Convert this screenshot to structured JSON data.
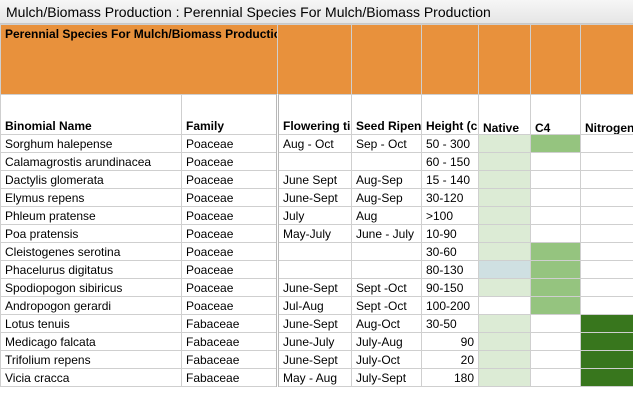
{
  "window": {
    "title": "Mulch/Biomass Production : Perennial Species For Mulch/Biomass Production"
  },
  "sheet": {
    "title": "Perennial Species For Mulch/Biomass Production",
    "headers": {
      "binomial": "Binomial Name",
      "family": "Family",
      "flowering": "Flowering time",
      "seed": "Seed Ripen",
      "height": "Height (cm)",
      "native": "Native",
      "c4": "C4",
      "nitrogen": "Nitrogen Fixing"
    },
    "rows": [
      {
        "name": "Sorghum halepense",
        "family": "Poaceae",
        "flowering": "Aug - Oct",
        "seed": "Sep - Oct",
        "height": "50 - 300",
        "native": "light",
        "c4": "medium",
        "nitrogen": ""
      },
      {
        "name": "Calamagrostis arundinacea",
        "family": "Poaceae",
        "flowering": "",
        "seed": "",
        "height": "60 - 150",
        "native": "light",
        "c4": "",
        "nitrogen": ""
      },
      {
        "name": "Dactylis glomerata",
        "family": "Poaceae",
        "flowering": "June Sept",
        "seed": "Aug-Sep",
        "height": "15 - 140",
        "native": "light",
        "c4": "",
        "nitrogen": ""
      },
      {
        "name": "Elymus repens",
        "family": "Poaceae",
        "flowering": "June-Sept",
        "seed": "Aug-Sep",
        "height": "30-120",
        "native": "light",
        "c4": "",
        "nitrogen": ""
      },
      {
        "name": "Phleum pratense",
        "family": "Poaceae",
        "flowering": "July",
        "seed": "Aug",
        "height": ">100",
        "native": "light",
        "c4": "",
        "nitrogen": ""
      },
      {
        "name": "Poa pratensis",
        "family": "Poaceae",
        "flowering": "May-July",
        "seed": "June - July",
        "height": "10-90",
        "native": "light",
        "c4": "",
        "nitrogen": ""
      },
      {
        "name": "Cleistogenes serotina",
        "family": "Poaceae",
        "flowering": "",
        "seed": "",
        "height": "30-60",
        "native": "light",
        "c4": "medium",
        "nitrogen": ""
      },
      {
        "name": "Phacelurus digitatus",
        "family": "Poaceae",
        "flowering": "",
        "seed": "",
        "height": "80-130",
        "native": "blue",
        "c4": "medium",
        "nitrogen": ""
      },
      {
        "name": "Spodiopogon sibiricus",
        "family": "Poaceae",
        "flowering": "June-Sept",
        "seed": "Sept -Oct",
        "height": "90-150",
        "native": "light",
        "c4": "medium",
        "nitrogen": ""
      },
      {
        "name": "Andropogon gerardi",
        "family": "Poaceae",
        "flowering": "Jul-Aug",
        "seed": "Sept -Oct",
        "height": "100-200",
        "native": "",
        "c4": "medium",
        "nitrogen": ""
      },
      {
        "name": "Lotus tenuis",
        "family": "Fabaceae",
        "flowering": "June-Sept",
        "seed": "Aug-Oct",
        "height": "30-50",
        "native": "light",
        "c4": "",
        "nitrogen": "dark"
      },
      {
        "name": "Medicago falcata",
        "family": "Fabaceae",
        "flowering": "June-July",
        "seed": "July-Aug",
        "height": "90",
        "native": "light",
        "c4": "",
        "nitrogen": "dark"
      },
      {
        "name": "Trifolium repens",
        "family": "Fabaceae",
        "flowering": "June-Sept",
        "seed": "July-Oct",
        "height": "20",
        "native": "light",
        "c4": "",
        "nitrogen": "dark"
      },
      {
        "name": "Vicia cracca",
        "family": "Fabaceae",
        "flowering": "May - Aug",
        "seed": "July-Sept",
        "height": "180",
        "native": "light",
        "c4": "",
        "nitrogen": "dark"
      }
    ]
  },
  "colors": {
    "header_orange": "#e8913c",
    "light_green": "#dcebd5",
    "medium_green": "#95c47f",
    "light_blue": "#cfe0e2",
    "dark_green": "#38761d"
  }
}
